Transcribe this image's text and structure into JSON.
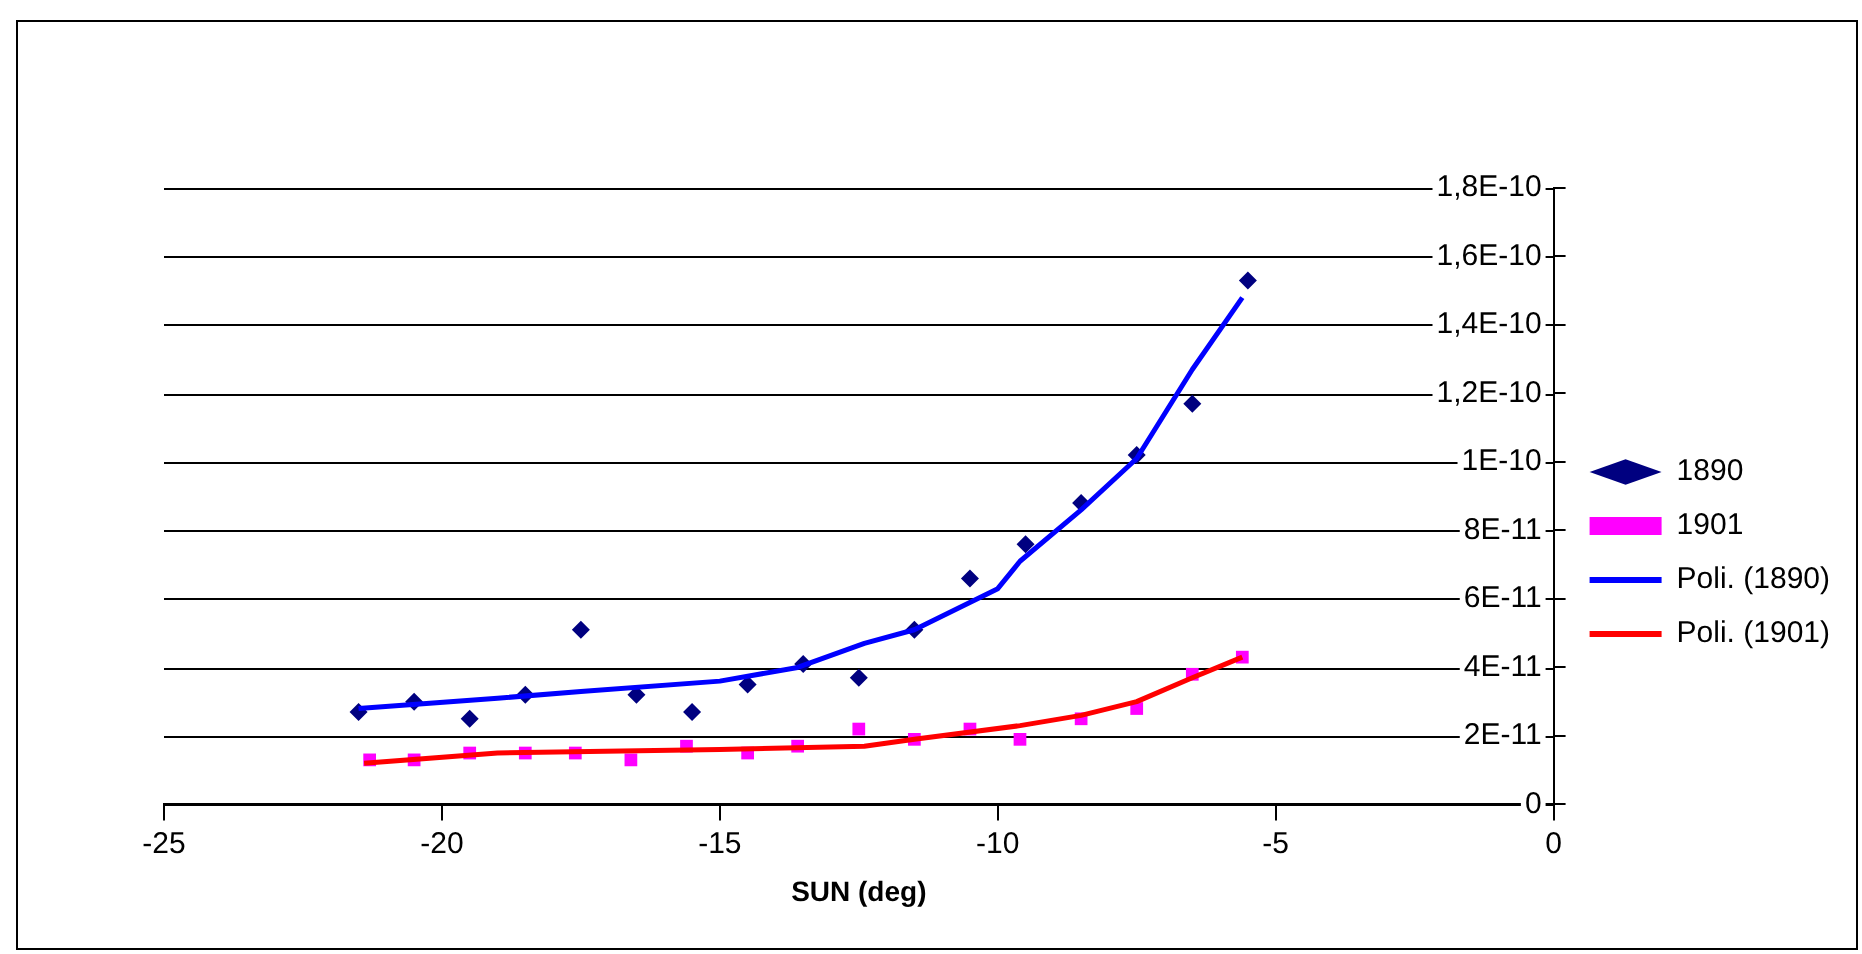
{
  "chart_data": {
    "type": "scatter",
    "xlabel": "SUN (deg)",
    "xlim": [
      -25,
      0
    ],
    "xticks": [
      -25,
      -20,
      -15,
      -10,
      -5,
      0
    ],
    "ylim": [
      0,
      1.8e-10
    ],
    "yticks": [
      {
        "value": 0,
        "label": "0"
      },
      {
        "value": 2e-11,
        "label": "2E-11"
      },
      {
        "value": 4e-11,
        "label": "4E-11"
      },
      {
        "value": 6e-11,
        "label": "6E-11"
      },
      {
        "value": 8e-11,
        "label": "8E-11"
      },
      {
        "value": 1e-10,
        "label": "1E-10"
      },
      {
        "value": 1.2e-10,
        "label": "1,2E-10"
      },
      {
        "value": 1.4e-10,
        "label": "1,4E-10"
      },
      {
        "value": 1.6e-10,
        "label": "1,6E-10"
      },
      {
        "value": 1.8e-10,
        "label": "1,8E-10"
      }
    ],
    "grid": "y",
    "legend": "right",
    "series": [
      {
        "name": "1890",
        "type": "scatter",
        "marker": "diamond",
        "color": "#000080",
        "x": [
          -21.5,
          -20.5,
          -19.5,
          -18.5,
          -17.5,
          -16.5,
          -15.5,
          -14.5,
          -13.5,
          -12.5,
          -11.5,
          -10.5,
          -9.5,
          -8.5,
          -7.5,
          -6.5,
          -5.5
        ],
        "values": [
          2.7e-11,
          3e-11,
          2.5e-11,
          3.2e-11,
          5.1e-11,
          3.2e-11,
          2.7e-11,
          3.5e-11,
          4.1e-11,
          3.7e-11,
          5.1e-11,
          6.6e-11,
          7.6e-11,
          8.8e-11,
          1.02e-10,
          1.17e-10,
          1.53e-10
        ]
      },
      {
        "name": "1901",
        "type": "scatter",
        "marker": "square",
        "color": "#ff00ff",
        "x": [
          -21.3,
          -20.5,
          -19.5,
          -18.5,
          -17.6,
          -16.6,
          -15.6,
          -14.5,
          -13.6,
          -12.5,
          -11.5,
          -10.5,
          -9.6,
          -8.5,
          -7.5,
          -6.5,
          -5.6
        ],
        "values": [
          1.3e-11,
          1.3e-11,
          1.5e-11,
          1.5e-11,
          1.5e-11,
          1.3e-11,
          1.7e-11,
          1.5e-11,
          1.7e-11,
          2.2e-11,
          1.9e-11,
          2.2e-11,
          1.9e-11,
          2.5e-11,
          2.8e-11,
          3.8e-11,
          4.3e-11
        ]
      },
      {
        "name": "Poli. (1890)",
        "type": "line",
        "marker": "none",
        "color": "#0000ff",
        "x": [
          -21.5,
          -19,
          -17.5,
          -15,
          -13.6,
          -12.4,
          -11.5,
          -10,
          -9.6,
          -8.5,
          -7.5,
          -6.5,
          -5.6
        ],
        "values": [
          2.8e-11,
          3.1e-11,
          3.3e-11,
          3.6e-11,
          4e-11,
          4.7e-11,
          5.1e-11,
          6.3e-11,
          7.1e-11,
          8.6e-11,
          1.01e-10,
          1.27e-10,
          1.48e-10
        ]
      },
      {
        "name": "Poli. (1901)",
        "type": "line",
        "marker": "none",
        "color": "#ff0000",
        "x": [
          -21.4,
          -19,
          -15,
          -12.4,
          -11.5,
          -9.6,
          -8.5,
          -7.5,
          -6.5,
          -5.6
        ],
        "values": [
          1.2e-11,
          1.5e-11,
          1.6e-11,
          1.7e-11,
          1.9e-11,
          2.3e-11,
          2.6e-11,
          3e-11,
          3.7e-11,
          4.3e-11
        ]
      }
    ]
  }
}
